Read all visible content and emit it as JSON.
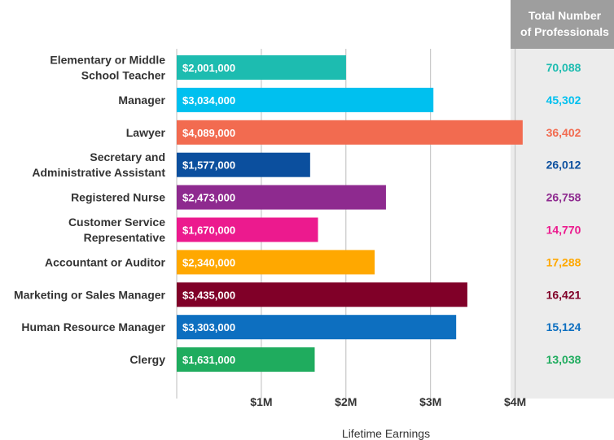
{
  "chart_data": {
    "type": "bar",
    "orientation": "horizontal",
    "categories": [
      [
        "Elementary or Middle",
        "School Teacher"
      ],
      [
        "Manager"
      ],
      [
        "Lawyer"
      ],
      [
        "Secretary and",
        "Administrative Assistant"
      ],
      [
        "Registered Nurse"
      ],
      [
        "Customer Service",
        "Representative"
      ],
      [
        "Accountant or Auditor"
      ],
      [
        "Marketing or Sales Manager"
      ],
      [
        "Human Resource Manager"
      ],
      [
        "Clergy"
      ]
    ],
    "values": [
      2001000,
      3034000,
      4089000,
      1577000,
      2473000,
      1670000,
      2340000,
      3435000,
      3303000,
      1631000
    ],
    "value_labels": [
      "$2,001,000",
      "$3,034,000",
      "$4,089,000",
      "$1,577,000",
      "$2,473,000",
      "$1,670,000",
      "$2,340,000",
      "$3,435,000",
      "$3,303,000",
      "$1,631,000"
    ],
    "colors": [
      "#1dbcb0",
      "#00c0ef",
      "#f26b50",
      "#0b4f9e",
      "#8e2a8f",
      "#ec1a8e",
      "#ffa800",
      "#800028",
      "#0d6fc0",
      "#1fac5e"
    ],
    "xlabel": "Lifetime Earnings",
    "ylabel": "",
    "xlim": [
      0,
      4000000
    ],
    "xticks": [
      1000000,
      2000000,
      3000000,
      4000000
    ],
    "xtick_labels": [
      "$1M",
      "$2M",
      "$3M",
      "$4M"
    ],
    "grid": true,
    "side_column": {
      "header": [
        "Total Number",
        "of Professionals"
      ],
      "values": [
        "70,088",
        "45,302",
        "36,402",
        "26,012",
        "26,758",
        "14,770",
        "17,288",
        "16,421",
        "15,124",
        "13,038"
      ],
      "header_bg": "#9e9e9e",
      "body_bg": "#ececec"
    }
  }
}
